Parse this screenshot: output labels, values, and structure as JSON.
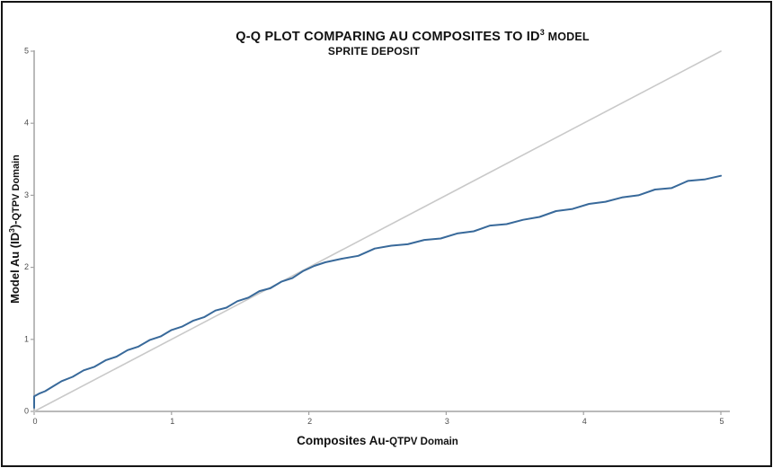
{
  "chart_data": {
    "type": "line",
    "title": {
      "main": "Q-Q PLOT COMPARING AU COMPOSITES TO ID",
      "superscript": "3",
      "suffix": " MODEL",
      "subtitle": "SPRITE DEPOSIT"
    },
    "xlabel": {
      "main": "Composites Au-",
      "secondary": "QTPV Domain"
    },
    "ylabel": {
      "main": "Model Au (ID",
      "superscript": "3",
      "after_sup": ")-",
      "secondary": "QTPV Domain"
    },
    "xlim": [
      0,
      5
    ],
    "ylim": [
      0,
      5
    ],
    "x_ticks": [
      "0",
      "1",
      "2",
      "3",
      "4",
      "5"
    ],
    "y_ticks": [
      "0",
      "1",
      "2",
      "3",
      "4",
      "5"
    ],
    "grid": "off",
    "legend": "none",
    "axis_color": "#a3a3a3",
    "tick_label_color": "#4d4d4d",
    "series": [
      {
        "name": "qq-curve",
        "color": "#38699a",
        "width": 2,
        "x": [
          0.0,
          0.0,
          0.04,
          0.08,
          0.14,
          0.2,
          0.28,
          0.36,
          0.44,
          0.52,
          0.6,
          0.68,
          0.76,
          0.84,
          0.92,
          1.0,
          1.08,
          1.16,
          1.24,
          1.32,
          1.4,
          1.48,
          1.56,
          1.64,
          1.72,
          1.8,
          1.88,
          1.96,
          2.04,
          2.12,
          2.24,
          2.36,
          2.48,
          2.6,
          2.72,
          2.84,
          2.96,
          3.08,
          3.2,
          3.32,
          3.44,
          3.56,
          3.68,
          3.8,
          3.92,
          4.04,
          4.16,
          4.28,
          4.4,
          4.52,
          4.64,
          4.76,
          4.88,
          5.0
        ],
        "y": [
          0.05,
          0.21,
          0.25,
          0.28,
          0.35,
          0.42,
          0.48,
          0.57,
          0.62,
          0.71,
          0.76,
          0.85,
          0.9,
          0.99,
          1.04,
          1.13,
          1.18,
          1.26,
          1.31,
          1.4,
          1.44,
          1.53,
          1.58,
          1.67,
          1.71,
          1.8,
          1.85,
          1.95,
          2.02,
          2.07,
          2.12,
          2.16,
          2.26,
          2.3,
          2.32,
          2.38,
          2.4,
          2.47,
          2.5,
          2.58,
          2.6,
          2.66,
          2.7,
          2.78,
          2.81,
          2.88,
          2.91,
          2.97,
          3.0,
          3.08,
          3.1,
          3.2,
          3.22,
          3.27
        ]
      },
      {
        "name": "reference-line",
        "color": "#c9c9c9",
        "width": 1.6,
        "x": [
          0,
          5
        ],
        "y": [
          0,
          5
        ]
      }
    ]
  }
}
